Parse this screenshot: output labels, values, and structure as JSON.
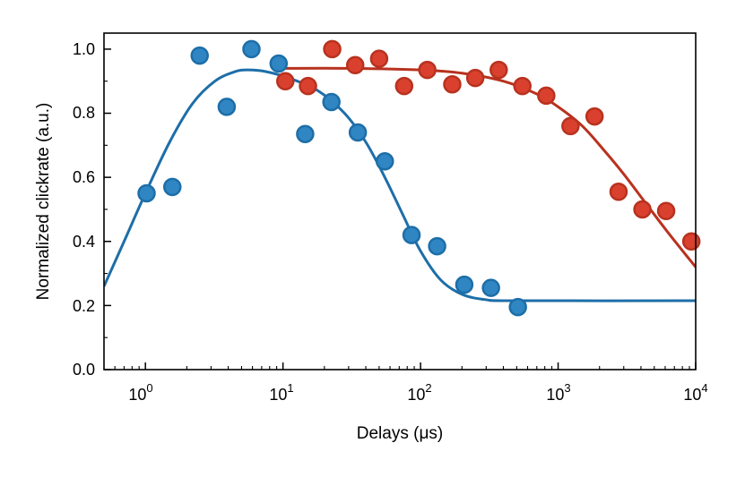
{
  "chart_data": {
    "type": "scatter",
    "xlabel": "Delays (μs)",
    "ylabel": "Normalized clickrate (a.u.)",
    "x_scale": "log",
    "xlim": [
      0.5,
      10000
    ],
    "ylim": [
      0.0,
      1.05
    ],
    "grid": false,
    "legend": "none",
    "x_ticks": [
      {
        "label_base": "10",
        "label_exp": "0"
      },
      {
        "label_base": "10",
        "label_exp": "1"
      },
      {
        "label_base": "10",
        "label_exp": "2"
      },
      {
        "label_base": "10",
        "label_exp": "3"
      },
      {
        "label_base": "10",
        "label_exp": "4"
      }
    ],
    "y_ticks": [
      "0.0",
      "0.2",
      "0.4",
      "0.6",
      "0.8",
      "1.0"
    ],
    "series": [
      {
        "color": "#2f86c2",
        "edge_color": "#1d6ea8",
        "points": [
          {
            "x": 1.02,
            "y": 0.55
          },
          {
            "x": 1.57,
            "y": 0.57
          },
          {
            "x": 2.48,
            "y": 0.98
          },
          {
            "x": 3.9,
            "y": 0.82
          },
          {
            "x": 5.9,
            "y": 1.0
          },
          {
            "x": 9.3,
            "y": 0.955
          },
          {
            "x": 14.5,
            "y": 0.735
          },
          {
            "x": 22.5,
            "y": 0.835
          },
          {
            "x": 35,
            "y": 0.74
          },
          {
            "x": 55,
            "y": 0.65
          },
          {
            "x": 86,
            "y": 0.42
          },
          {
            "x": 132,
            "y": 0.385
          },
          {
            "x": 208,
            "y": 0.265
          },
          {
            "x": 325,
            "y": 0.255
          },
          {
            "x": 510,
            "y": 0.195
          }
        ],
        "fit": [
          {
            "x": 0.5,
            "y": 0.26
          },
          {
            "x": 0.7,
            "y": 0.4
          },
          {
            "x": 1.0,
            "y": 0.55
          },
          {
            "x": 1.5,
            "y": 0.71
          },
          {
            "x": 2.2,
            "y": 0.83
          },
          {
            "x": 3.2,
            "y": 0.9
          },
          {
            "x": 4.5,
            "y": 0.93
          },
          {
            "x": 5.6,
            "y": 0.935
          },
          {
            "x": 7.5,
            "y": 0.93
          },
          {
            "x": 11,
            "y": 0.91
          },
          {
            "x": 18,
            "y": 0.87
          },
          {
            "x": 28,
            "y": 0.8
          },
          {
            "x": 40,
            "y": 0.71
          },
          {
            "x": 55,
            "y": 0.6
          },
          {
            "x": 75,
            "y": 0.48
          },
          {
            "x": 100,
            "y": 0.37
          },
          {
            "x": 140,
            "y": 0.28
          },
          {
            "x": 200,
            "y": 0.235
          },
          {
            "x": 300,
            "y": 0.218
          },
          {
            "x": 500,
            "y": 0.215
          },
          {
            "x": 10000,
            "y": 0.215
          }
        ]
      },
      {
        "color": "#d9412e",
        "edge_color": "#b8321f",
        "points": [
          {
            "x": 10.4,
            "y": 0.9
          },
          {
            "x": 15.2,
            "y": 0.885
          },
          {
            "x": 22.8,
            "y": 1.0
          },
          {
            "x": 33.5,
            "y": 0.95
          },
          {
            "x": 50,
            "y": 0.97
          },
          {
            "x": 76,
            "y": 0.885
          },
          {
            "x": 112,
            "y": 0.935
          },
          {
            "x": 170,
            "y": 0.89
          },
          {
            "x": 250,
            "y": 0.91
          },
          {
            "x": 370,
            "y": 0.935
          },
          {
            "x": 550,
            "y": 0.885
          },
          {
            "x": 820,
            "y": 0.855
          },
          {
            "x": 1230,
            "y": 0.76
          },
          {
            "x": 1840,
            "y": 0.79
          },
          {
            "x": 2750,
            "y": 0.555
          },
          {
            "x": 4100,
            "y": 0.5
          },
          {
            "x": 6100,
            "y": 0.495
          },
          {
            "x": 9300,
            "y": 0.4
          }
        ],
        "fit": [
          {
            "x": 10,
            "y": 0.94
          },
          {
            "x": 30,
            "y": 0.94
          },
          {
            "x": 100,
            "y": 0.935
          },
          {
            "x": 200,
            "y": 0.925
          },
          {
            "x": 400,
            "y": 0.9
          },
          {
            "x": 700,
            "y": 0.86
          },
          {
            "x": 1000,
            "y": 0.82
          },
          {
            "x": 1500,
            "y": 0.76
          },
          {
            "x": 2200,
            "y": 0.68
          },
          {
            "x": 3000,
            "y": 0.61
          },
          {
            "x": 4500,
            "y": 0.51
          },
          {
            "x": 6500,
            "y": 0.42
          },
          {
            "x": 10000,
            "y": 0.32
          }
        ]
      }
    ]
  }
}
